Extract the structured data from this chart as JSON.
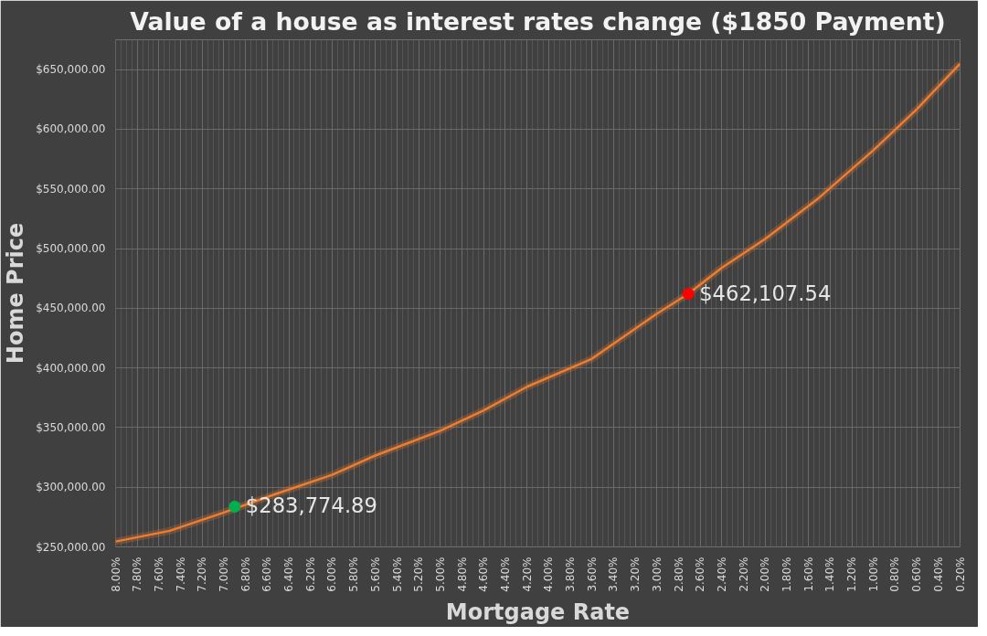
{
  "chart_data": {
    "type": "line",
    "title": "Value of a house as interest rates change ($1850 Payment)",
    "xlabel": "Mortgage Rate",
    "ylabel": "Home Price",
    "x": [
      8.0,
      7.5,
      7.0,
      6.5,
      6.0,
      5.6,
      5.0,
      4.6,
      4.2,
      3.6,
      3.0,
      2.71,
      2.4,
      2.0,
      1.5,
      1.0,
      0.6,
      0.2
    ],
    "series": [
      {
        "color": "#ed7d31",
        "marker": "none",
        "values": [
          254500,
          263500,
          278800,
          295000,
          310400,
          326600,
          347300,
          364400,
          384200,
          407700,
          445500,
          462100,
          484000,
          508000,
          542800,
          582400,
          616700,
          655000
        ]
      },
      {
        "type": "scatter",
        "marker": "circle",
        "color": "#00b050",
        "x": [
          6.9
        ],
        "values": [
          283774.89
        ],
        "value_labels": [
          "$283,774.89"
        ]
      },
      {
        "type": "scatter",
        "marker": "circle",
        "color": "#ff0000",
        "x": [
          2.71
        ],
        "values": [
          462107.54
        ],
        "value_labels": [
          "$462,107.54"
        ]
      }
    ],
    "xlim": [
      8.0,
      0.2
    ],
    "xticks": [
      {
        "value": 8.0,
        "label": "8.00%"
      },
      {
        "value": 7.8,
        "label": "7.80%"
      },
      {
        "value": 7.6,
        "label": "7.60%"
      },
      {
        "value": 7.4,
        "label": "7.40%"
      },
      {
        "value": 7.2,
        "label": "7.20%"
      },
      {
        "value": 7.0,
        "label": "7.00%"
      },
      {
        "value": 6.8,
        "label": "6.80%"
      },
      {
        "value": 6.6,
        "label": "6.60%"
      },
      {
        "value": 6.4,
        "label": "6.40%"
      },
      {
        "value": 6.2,
        "label": "6.20%"
      },
      {
        "value": 6.0,
        "label": "6.00%"
      },
      {
        "value": 5.8,
        "label": "5.80%"
      },
      {
        "value": 5.6,
        "label": "5.60%"
      },
      {
        "value": 5.4,
        "label": "5.40%"
      },
      {
        "value": 5.2,
        "label": "5.20%"
      },
      {
        "value": 5.0,
        "label": "5.00%"
      },
      {
        "value": 4.8,
        "label": "4.80%"
      },
      {
        "value": 4.6,
        "label": "4.60%"
      },
      {
        "value": 4.4,
        "label": "4.40%"
      },
      {
        "value": 4.2,
        "label": "4.20%"
      },
      {
        "value": 4.0,
        "label": "4.00%"
      },
      {
        "value": 3.8,
        "label": "3.80%"
      },
      {
        "value": 3.6,
        "label": "3.60%"
      },
      {
        "value": 3.4,
        "label": "3.40%"
      },
      {
        "value": 3.2,
        "label": "3.20%"
      },
      {
        "value": 3.0,
        "label": "3.00%"
      },
      {
        "value": 2.8,
        "label": "2.80%"
      },
      {
        "value": 2.6,
        "label": "2.60%"
      },
      {
        "value": 2.4,
        "label": "2.40%"
      },
      {
        "value": 2.2,
        "label": "2.20%"
      },
      {
        "value": 2.0,
        "label": "2.00%"
      },
      {
        "value": 1.8,
        "label": "1.80%"
      },
      {
        "value": 1.6,
        "label": "1.60%"
      },
      {
        "value": 1.4,
        "label": "1.40%"
      },
      {
        "value": 1.2,
        "label": "1.20%"
      },
      {
        "value": 1.0,
        "label": "1.00%"
      },
      {
        "value": 0.8,
        "label": "0.80%"
      },
      {
        "value": 0.6,
        "label": "0.60%"
      },
      {
        "value": 0.4,
        "label": "0.40%"
      },
      {
        "value": 0.2,
        "label": "0.20%"
      }
    ],
    "ylim": [
      250000,
      675000
    ],
    "yticks": [
      {
        "value": 250000,
        "label": "$250,000.00"
      },
      {
        "value": 300000,
        "label": "$300,000.00"
      },
      {
        "value": 350000,
        "label": "$350,000.00"
      },
      {
        "value": 400000,
        "label": "$400,000.00"
      },
      {
        "value": 450000,
        "label": "$450,000.00"
      },
      {
        "value": 500000,
        "label": "$500,000.00"
      },
      {
        "value": 550000,
        "label": "$550,000.00"
      },
      {
        "value": 600000,
        "label": "$600,000.00"
      },
      {
        "value": 650000,
        "label": "$650,000.00"
      }
    ],
    "grid": true,
    "line_style": "solid"
  }
}
